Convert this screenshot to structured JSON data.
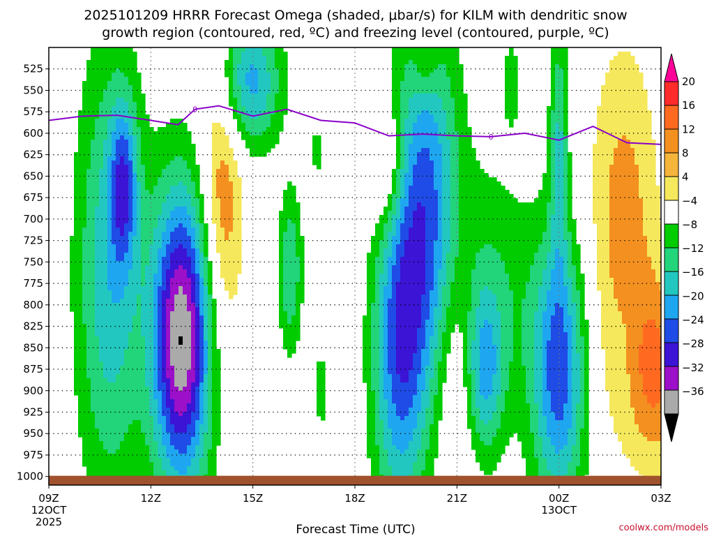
{
  "chart_data": {
    "type": "heatmap",
    "title_line1": "2025101209 HRRR Forecast Omega (shaded, μbar/s) for KILM with dendritic snow",
    "title_line2": "growth region (contoured, red, ºC) and freezing level (contoured, purple, ºC)",
    "xlabel": "Forecast Time (UTC)",
    "credit": "coolwx.com/models",
    "x_hours": [
      0,
      3,
      6,
      9,
      12,
      15,
      18
    ],
    "x_ticks": [
      {
        "h": 0,
        "label": "09Z",
        "sub1": "12OCT",
        "sub2": "2025"
      },
      {
        "h": 3,
        "label": "12Z"
      },
      {
        "h": 6,
        "label": "15Z"
      },
      {
        "h": 9,
        "label": "18Z"
      },
      {
        "h": 12,
        "label": "21Z"
      },
      {
        "h": 15,
        "label": "00Z",
        "sub1": "13OCT"
      },
      {
        "h": 18,
        "label": "03Z"
      }
    ],
    "xlim": [
      0,
      18
    ],
    "ylim": [
      500,
      1010
    ],
    "pressure_levels": [
      525,
      550,
      575,
      600,
      625,
      650,
      675,
      700,
      725,
      750,
      775,
      800,
      825,
      850,
      875,
      900,
      925,
      950,
      975,
      1000
    ],
    "pressure_labels": [
      "525",
      "550",
      "575",
      "600",
      "625",
      "650",
      "675",
      "700",
      "725",
      "750",
      "775",
      "800",
      "825",
      "850",
      "875",
      "900",
      "925",
      "950",
      "975",
      "1000"
    ],
    "colorbar": {
      "labels": [
        "20",
        "16",
        "12",
        "8",
        "4",
        "−4",
        "−8",
        "−12",
        "−16",
        "−20",
        "−24",
        "−28",
        "−32",
        "−36"
      ],
      "colors": [
        "#ff0099",
        "#ff2a2a",
        "#ff6a20",
        "#f39020",
        "#f5b53a",
        "#f5e85c",
        "#ffffff",
        "#00cc00",
        "#22d47a",
        "#22c8c0",
        "#1ea7f0",
        "#1f4ce6",
        "#3b14d6",
        "#9b10c8",
        "#aaaaaa",
        "#000000"
      ]
    },
    "omega_features": [
      {
        "h": 1.8,
        "p": 765,
        "rh": 1.25,
        "rp": 330,
        "peak": -15
      },
      {
        "h": 2.2,
        "p": 660,
        "rh": 0.5,
        "rp": 120,
        "peak": -16
      },
      {
        "h": 3.9,
        "p": 840,
        "rh": 1.1,
        "rp": 220,
        "peak": -36
      },
      {
        "h": 5.1,
        "p": 665,
        "rh": 0.8,
        "rp": 220,
        "peak": 12
      },
      {
        "h": 5.9,
        "p": 540,
        "rh": 1.15,
        "rp": 100,
        "peak": -18
      },
      {
        "h": 7.1,
        "p": 760,
        "rh": 0.45,
        "rp": 120,
        "peak": -12
      },
      {
        "h": 7.9,
        "p": 620,
        "rh": 0.25,
        "rp": 40,
        "peak": -6
      },
      {
        "h": 8.0,
        "p": 900,
        "rh": 0.3,
        "rp": 70,
        "peak": -6
      },
      {
        "h": 9.9,
        "p": 640,
        "rh": 0.7,
        "rp": 90,
        "peak": 10
      },
      {
        "h": 10.3,
        "p": 860,
        "rh": 1.0,
        "rp": 240,
        "peak": -20
      },
      {
        "h": 11.1,
        "p": 680,
        "rh": 1.2,
        "rp": 280,
        "peak": -20
      },
      {
        "h": 11.1,
        "p": 520,
        "rh": 0.5,
        "rp": 50,
        "peak": 6
      },
      {
        "h": 12.0,
        "p": 860,
        "rh": 0.8,
        "rp": 190,
        "peak": 8
      },
      {
        "h": 13.0,
        "p": 790,
        "rh": 1.8,
        "rp": 200,
        "peak": -8
      },
      {
        "h": 12.8,
        "p": 880,
        "rh": 0.7,
        "rp": 120,
        "peak": -14
      },
      {
        "h": 15.0,
        "p": 880,
        "rh": 1.0,
        "rp": 200,
        "peak": -22
      },
      {
        "h": 15.0,
        "p": 610,
        "rh": 0.35,
        "rp": 190,
        "peak": -12
      },
      {
        "h": 16.9,
        "p": 700,
        "rh": 1.3,
        "rp": 260,
        "peak": 10
      },
      {
        "h": 17.9,
        "p": 880,
        "rh": 1.5,
        "rp": 140,
        "peak": 12
      },
      {
        "h": 17.0,
        "p": 850,
        "rh": 0.6,
        "rp": 120,
        "peak": -4
      },
      {
        "h": 4.0,
        "p": 530,
        "rh": 0.2,
        "rp": 40,
        "peak": 5
      },
      {
        "h": 13.6,
        "p": 540,
        "rh": 0.4,
        "rp": 70,
        "peak": -6
      }
    ],
    "freezing_level": {
      "h": [
        0,
        1,
        2,
        3,
        3.8,
        4.3,
        5,
        6,
        7,
        8,
        9,
        10,
        11,
        12,
        13,
        14,
        15,
        16,
        17,
        18
      ],
      "p": [
        585,
        580,
        579,
        585,
        590,
        572,
        568,
        580,
        572,
        585,
        588,
        603,
        601,
        603,
        604,
        600,
        608,
        592,
        611,
        613
      ],
      "label": "0"
    },
    "ground_level_p": 1000
  }
}
